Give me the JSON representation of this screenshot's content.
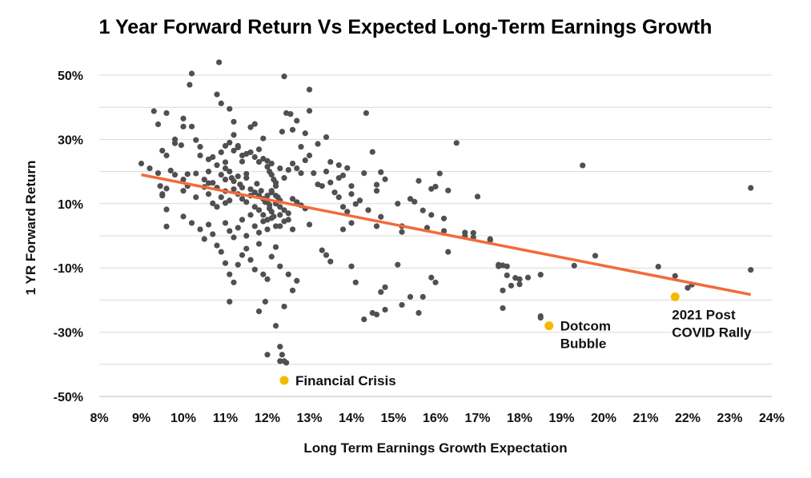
{
  "chart_data": {
    "type": "scatter",
    "title": "1 Year Forward Return Vs Expected Long-Term Earnings Growth",
    "xlabel": "Long Term Earnings Growth Expectation",
    "ylabel": "1 YR Forward Return",
    "xlim": [
      8,
      24
    ],
    "ylim": [
      -50,
      50
    ],
    "x_ticks": [
      8,
      9,
      10,
      11,
      12,
      13,
      14,
      15,
      16,
      17,
      18,
      19,
      20,
      21,
      22,
      23,
      24
    ],
    "x_tick_labels": [
      "8%",
      "9%",
      "10%",
      "11%",
      "12%",
      "13%",
      "14%",
      "15%",
      "16%",
      "17%",
      "18%",
      "19%",
      "20%",
      "21%",
      "22%",
      "23%",
      "24%"
    ],
    "y_ticks": [
      50,
      30,
      10,
      -10,
      -30,
      -50
    ],
    "y_tick_labels": [
      "50%",
      "30%",
      "10%",
      "-10%",
      "-30%",
      "-50%"
    ],
    "grid": true,
    "colors": {
      "points": "#505050",
      "trend": "#f26b3a",
      "highlight": "#f5b800",
      "grid": "#d9d9d9"
    },
    "trendline": {
      "x": [
        9,
        23.5
      ],
      "y": [
        19,
        -18.3
      ]
    },
    "highlights": [
      {
        "x": 12.4,
        "y": -45,
        "label": [
          "Financial Crisis"
        ],
        "label_side": "right"
      },
      {
        "x": 18.7,
        "y": -28,
        "label": [
          "Dotcom",
          "Bubble"
        ],
        "label_side": "right-below"
      },
      {
        "x": 21.7,
        "y": -19,
        "label": [
          "2021 Post",
          "COVID Rally"
        ],
        "label_side": "below"
      }
    ],
    "series": [
      {
        "values": [
          [
            9.0,
            22.5
          ],
          [
            9.3,
            38.8
          ],
          [
            9.4,
            34.7
          ],
          [
            9.6,
            38.2
          ],
          [
            9.5,
            26.5
          ],
          [
            9.45,
            15.5
          ],
          [
            9.5,
            12.5
          ],
          [
            9.6,
            14.7
          ],
          [
            9.7,
            20.3
          ],
          [
            9.8,
            28.8
          ],
          [
            9.6,
            8.2
          ],
          [
            9.6,
            2.9
          ],
          [
            9.95,
            28.2
          ],
          [
            10.0,
            36.5
          ],
          [
            10.0,
            17.5
          ],
          [
            10.1,
            19.2
          ],
          [
            10.15,
            47.0
          ],
          [
            10.2,
            50.5
          ],
          [
            10.3,
            19.4
          ],
          [
            10.3,
            29.8
          ],
          [
            10.4,
            27.7
          ],
          [
            10.5,
            15.2
          ],
          [
            10.6,
            23.8
          ],
          [
            10.6,
            16.4
          ],
          [
            10.7,
            10.1
          ],
          [
            10.8,
            9.0
          ],
          [
            10.8,
            44.0
          ],
          [
            10.85,
            54.0
          ],
          [
            10.9,
            41.2
          ],
          [
            11.0,
            22.9
          ],
          [
            11.0,
            13.9
          ],
          [
            11.0,
            10.2
          ],
          [
            11.1,
            39.5
          ],
          [
            11.2,
            35.5
          ],
          [
            11.2,
            31.4
          ],
          [
            11.3,
            28.0
          ],
          [
            11.4,
            23.1
          ],
          [
            11.5,
            19.3
          ],
          [
            11.6,
            33.8
          ],
          [
            11.7,
            34.8
          ],
          [
            11.8,
            26.9
          ],
          [
            11.9,
            30.3
          ],
          [
            12.0,
            23.3
          ],
          [
            12.0,
            12.5
          ],
          [
            12.05,
            9.6
          ],
          [
            12.1,
            14.0
          ],
          [
            12.1,
            22.5
          ],
          [
            12.2,
            15.5
          ],
          [
            12.3,
            3.0
          ],
          [
            12.35,
            32.4
          ],
          [
            12.4,
            49.6
          ],
          [
            12.45,
            38.2
          ],
          [
            12.55,
            37.9
          ],
          [
            12.6,
            33.0
          ],
          [
            12.7,
            35.8
          ],
          [
            12.8,
            27.7
          ],
          [
            12.9,
            31.9
          ],
          [
            13.0,
            38.9
          ],
          [
            13.0,
            45.5
          ],
          [
            13.2,
            28.6
          ],
          [
            13.4,
            30.7
          ],
          [
            13.5,
            16.6
          ],
          [
            13.7,
            22.0
          ],
          [
            13.8,
            18.8
          ],
          [
            13.9,
            21.1
          ],
          [
            14.0,
            15.5
          ],
          [
            14.1,
            9.9
          ],
          [
            14.3,
            19.5
          ],
          [
            14.35,
            38.2
          ],
          [
            14.5,
            26.1
          ],
          [
            14.6,
            15.9
          ],
          [
            14.7,
            19.8
          ],
          [
            14.8,
            17.6
          ],
          [
            14.7,
            5.9
          ],
          [
            15.1,
            10.0
          ],
          [
            15.2,
            1.2
          ],
          [
            15.4,
            11.5
          ],
          [
            15.5,
            10.6
          ],
          [
            15.6,
            17.1
          ],
          [
            15.7,
            7.9
          ],
          [
            15.8,
            2.5
          ],
          [
            15.9,
            14.6
          ],
          [
            16.0,
            15.3
          ],
          [
            16.1,
            19.4
          ],
          [
            16.2,
            5.4
          ],
          [
            16.3,
            14.1
          ],
          [
            16.5,
            28.9
          ],
          [
            16.7,
            -0.1
          ],
          [
            16.9,
            0.9
          ],
          [
            17.0,
            12.2
          ],
          [
            17.3,
            -1.4
          ],
          [
            17.6,
            -9.2
          ],
          [
            17.7,
            -12.3
          ],
          [
            17.9,
            -13.1
          ],
          [
            18.0,
            -15.1
          ],
          [
            18.5,
            -12.1
          ],
          [
            19.3,
            -9.3
          ],
          [
            19.5,
            21.9
          ],
          [
            19.8,
            -6.2
          ],
          [
            21.3,
            -9.6
          ],
          [
            21.7,
            -12.5
          ],
          [
            22.0,
            -16.2
          ],
          [
            22.1,
            -15.2
          ],
          [
            23.5,
            14.9
          ],
          [
            23.5,
            -10.6
          ],
          [
            9.6,
            25.0
          ],
          [
            9.8,
            30.0
          ],
          [
            10.0,
            34.0
          ],
          [
            10.2,
            34.0
          ],
          [
            10.4,
            25.0
          ],
          [
            10.6,
            20.0
          ],
          [
            10.7,
            24.5
          ],
          [
            10.8,
            22.0
          ],
          [
            10.9,
            19.0
          ],
          [
            11.0,
            21.0
          ],
          [
            11.1,
            20.0
          ],
          [
            11.15,
            18.0
          ],
          [
            11.2,
            17.0
          ],
          [
            11.3,
            18.5
          ],
          [
            11.35,
            16.0
          ],
          [
            11.4,
            15.0
          ],
          [
            11.5,
            18.0
          ],
          [
            11.6,
            14.5
          ],
          [
            11.7,
            13.5
          ],
          [
            11.75,
            16.2
          ],
          [
            11.8,
            12.5
          ],
          [
            11.85,
            14.0
          ],
          [
            11.9,
            11.5
          ],
          [
            11.95,
            10.5
          ],
          [
            12.0,
            11.0
          ],
          [
            12.05,
            8.5
          ],
          [
            12.1,
            7.5
          ],
          [
            12.15,
            6.0
          ],
          [
            12.2,
            10.0
          ],
          [
            12.25,
            12.0
          ],
          [
            12.3,
            9.0
          ],
          [
            12.4,
            8.0
          ],
          [
            12.5,
            7.0
          ],
          [
            12.6,
            11.5
          ],
          [
            12.7,
            10.5
          ],
          [
            12.8,
            9.5
          ],
          [
            12.9,
            8.5
          ],
          [
            10.9,
            26.0
          ],
          [
            11.0,
            28.0
          ],
          [
            11.1,
            29.0
          ],
          [
            11.2,
            26.5
          ],
          [
            11.3,
            27.5
          ],
          [
            11.4,
            25.0
          ],
          [
            11.5,
            25.5
          ],
          [
            11.6,
            26.0
          ],
          [
            11.7,
            24.5
          ],
          [
            11.8,
            23.0
          ],
          [
            11.9,
            24.0
          ],
          [
            12.0,
            21.5
          ],
          [
            12.05,
            20.0
          ],
          [
            12.1,
            19.0
          ],
          [
            12.15,
            17.5
          ],
          [
            12.2,
            16.5
          ],
          [
            12.3,
            21.0
          ],
          [
            12.4,
            18.0
          ],
          [
            12.5,
            20.5
          ],
          [
            12.6,
            22.5
          ],
          [
            12.7,
            21.0
          ],
          [
            12.8,
            19.5
          ],
          [
            12.9,
            23.5
          ],
          [
            13.0,
            25.0
          ],
          [
            13.1,
            19.5
          ],
          [
            13.2,
            16.0
          ],
          [
            13.3,
            15.5
          ],
          [
            13.4,
            20.0
          ],
          [
            13.5,
            23.0
          ],
          [
            13.6,
            13.5
          ],
          [
            13.7,
            12.0
          ],
          [
            13.8,
            9.0
          ],
          [
            13.9,
            7.5
          ],
          [
            14.0,
            4.0
          ],
          [
            14.2,
            11.0
          ],
          [
            14.4,
            8.0
          ],
          [
            14.6,
            3.0
          ],
          [
            10.0,
            6.0
          ],
          [
            10.2,
            4.0
          ],
          [
            10.4,
            2.0
          ],
          [
            10.5,
            -1.0
          ],
          [
            10.6,
            3.5
          ],
          [
            10.7,
            0.5
          ],
          [
            10.8,
            -3.0
          ],
          [
            10.9,
            -5.0
          ],
          [
            11.0,
            -8.5
          ],
          [
            11.1,
            -12.0
          ],
          [
            11.2,
            -14.5
          ],
          [
            11.3,
            -9.0
          ],
          [
            11.4,
            -6.0
          ],
          [
            11.5,
            -4.0
          ],
          [
            11.6,
            -7.5
          ],
          [
            11.7,
            -10.5
          ],
          [
            11.8,
            -2.5
          ],
          [
            11.9,
            -12.0
          ],
          [
            12.0,
            -13.5
          ],
          [
            12.1,
            -6.5
          ],
          [
            12.2,
            -3.5
          ],
          [
            12.3,
            -9.5
          ],
          [
            12.4,
            -22.0
          ],
          [
            12.5,
            -12.0
          ],
          [
            12.6,
            -17.0
          ],
          [
            12.7,
            -14.0
          ],
          [
            11.1,
            -20.5
          ],
          [
            11.8,
            -23.5
          ],
          [
            11.95,
            -20.5
          ],
          [
            12.0,
            -37.0
          ],
          [
            12.2,
            -28.0
          ],
          [
            12.3,
            -34.5
          ],
          [
            12.35,
            -37.0
          ],
          [
            12.4,
            -39.0
          ],
          [
            12.45,
            -39.5
          ],
          [
            12.3,
            -39.0
          ],
          [
            11.0,
            4.0
          ],
          [
            11.1,
            1.5
          ],
          [
            11.2,
            -0.5
          ],
          [
            11.3,
            2.5
          ],
          [
            11.4,
            5.0
          ],
          [
            11.5,
            0.0
          ],
          [
            11.6,
            6.5
          ],
          [
            11.7,
            3.0
          ],
          [
            11.8,
            1.0
          ],
          [
            11.9,
            4.5
          ],
          [
            12.0,
            2.0
          ],
          [
            12.1,
            5.5
          ],
          [
            12.2,
            3.0
          ],
          [
            12.3,
            6.5
          ],
          [
            12.4,
            4.5
          ],
          [
            12.5,
            5.0
          ],
          [
            12.6,
            2.0
          ],
          [
            13.0,
            3.5
          ],
          [
            13.3,
            -4.5
          ],
          [
            13.4,
            -6.0
          ],
          [
            13.5,
            -8.0
          ],
          [
            13.8,
            2.0
          ],
          [
            14.0,
            -9.5
          ],
          [
            14.1,
            -14.5
          ],
          [
            14.3,
            -26.0
          ],
          [
            14.5,
            -24.0
          ],
          [
            14.6,
            -24.5
          ],
          [
            14.7,
            -17.5
          ],
          [
            14.8,
            -16.0
          ],
          [
            14.8,
            -23.0
          ],
          [
            15.1,
            -9.0
          ],
          [
            15.2,
            -21.5
          ],
          [
            15.4,
            -19.0
          ],
          [
            15.6,
            -24.0
          ],
          [
            15.7,
            -19.0
          ],
          [
            15.9,
            -13.0
          ],
          [
            16.0,
            -14.5
          ],
          [
            16.3,
            -5.0
          ],
          [
            17.5,
            -9.5
          ],
          [
            17.6,
            -17.0
          ],
          [
            17.6,
            -22.5
          ],
          [
            18.0,
            -13.5
          ],
          [
            18.2,
            -13.0
          ],
          [
            18.5,
            -25.0
          ],
          [
            18.5,
            -25.5
          ],
          [
            9.2,
            21.0
          ],
          [
            9.4,
            19.5
          ],
          [
            9.5,
            13.0
          ],
          [
            9.8,
            19.0
          ],
          [
            10.0,
            14.0
          ],
          [
            10.1,
            15.5
          ],
          [
            10.3,
            12.0
          ],
          [
            10.5,
            17.5
          ],
          [
            10.6,
            13.0
          ],
          [
            10.7,
            16.5
          ],
          [
            10.8,
            15.0
          ],
          [
            10.9,
            12.0
          ],
          [
            11.0,
            17.5
          ],
          [
            11.1,
            11.0
          ],
          [
            11.2,
            14.5
          ],
          [
            11.3,
            13.0
          ],
          [
            11.4,
            11.5
          ],
          [
            11.5,
            10.5
          ],
          [
            11.6,
            12.5
          ],
          [
            11.7,
            9.0
          ],
          [
            11.8,
            8.0
          ],
          [
            11.9,
            6.5
          ],
          [
            12.0,
            5.0
          ],
          [
            12.1,
            13.5
          ],
          [
            12.2,
            12.5
          ],
          [
            12.3,
            11.0
          ],
          [
            13.7,
            18.0
          ],
          [
            14.0,
            13.0
          ],
          [
            14.6,
            14.0
          ],
          [
            15.2,
            3.0
          ],
          [
            15.9,
            6.5
          ],
          [
            16.2,
            1.5
          ],
          [
            16.7,
            1.0
          ],
          [
            16.9,
            -0.5
          ],
          [
            17.3,
            -1.0
          ],
          [
            17.8,
            -15.5
          ],
          [
            17.7,
            -9.5
          ],
          [
            17.5,
            -9.0
          ]
        ]
      }
    ]
  }
}
